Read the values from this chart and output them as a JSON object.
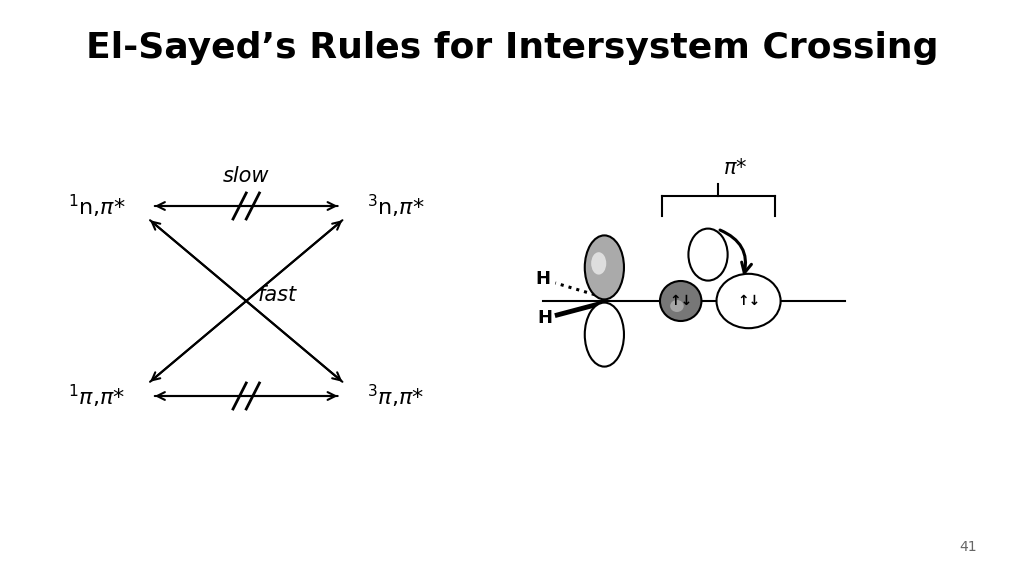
{
  "title": "El-Sayed’s Rules for Intersystem Crossing",
  "title_fontsize": 26,
  "title_fontweight": "bold",
  "bg_color": "#ffffff",
  "text_color": "#000000",
  "label_slow": "slow",
  "label_fast": "fast",
  "page_number": "41",
  "pi_star_label": "π*"
}
